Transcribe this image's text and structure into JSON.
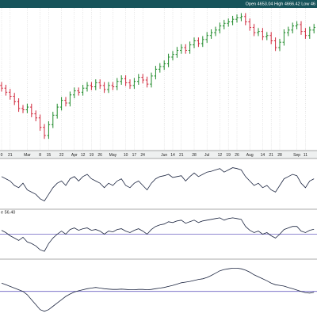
{
  "chart_data": [
    {
      "type": "ohlc",
      "header": "Open 4653.04  High 4666.42  Low 46",
      "categories": [
        "0",
        null,
        "21",
        null,
        null,
        null,
        "Mar",
        null,
        null,
        "8",
        null,
        "15",
        null,
        null,
        "22",
        null,
        null,
        "Apr",
        null,
        "12",
        null,
        "19",
        null,
        "26",
        null,
        null,
        "May",
        null,
        null,
        "10",
        null,
        "17",
        null,
        "24",
        null,
        null,
        null,
        null,
        "Jun",
        null,
        "14",
        null,
        "21",
        null,
        null,
        "28",
        null,
        null,
        "Jul",
        null,
        null,
        "12",
        null,
        "19",
        null,
        "26",
        null,
        null,
        "Aug",
        null,
        null,
        "14",
        null,
        "21",
        null,
        "28",
        null,
        null,
        null,
        "Sep",
        null,
        "11",
        null,
        null
      ],
      "open": [
        4170,
        4150,
        4120,
        4090,
        4050,
        4000,
        3990,
        4010,
        3960,
        3930,
        3860,
        3800,
        3880,
        3950,
        4010,
        4060,
        4040,
        4100,
        4130,
        4120,
        4150,
        4170,
        4160,
        4190,
        4170,
        4140,
        4170,
        4160,
        4200,
        4220,
        4190,
        4170,
        4200,
        4230,
        4210,
        4180,
        4240,
        4290,
        4310,
        4330,
        4380,
        4400,
        4430,
        4450,
        4430,
        4470,
        4500,
        4480,
        4510,
        4540,
        4560,
        4580,
        4610,
        4630,
        4640,
        4660,
        4670,
        4680,
        4640,
        4600,
        4560,
        4570,
        4530,
        4540,
        4500,
        4450,
        4490,
        4560,
        4580,
        4610,
        4620,
        4570,
        4540,
        4580
      ],
      "high": [
        4195,
        4175,
        4145,
        4115,
        4075,
        4025,
        4035,
        4035,
        3985,
        3955,
        3885,
        3905,
        3975,
        4035,
        4085,
        4085,
        4125,
        4155,
        4155,
        4175,
        4195,
        4195,
        4215,
        4215,
        4195,
        4195,
        4195,
        4225,
        4245,
        4245,
        4215,
        4225,
        4255,
        4255,
        4235,
        4265,
        4315,
        4335,
        4355,
        4405,
        4425,
        4455,
        4475,
        4475,
        4495,
        4525,
        4525,
        4535,
        4565,
        4585,
        4605,
        4635,
        4655,
        4665,
        4685,
        4695,
        4705,
        4705,
        4665,
        4625,
        4595,
        4595,
        4565,
        4565,
        4525,
        4515,
        4585,
        4605,
        4635,
        4645,
        4645,
        4595,
        4605,
        4625
      ],
      "low": [
        4125,
        4095,
        4065,
        4025,
        3975,
        3965,
        3965,
        3935,
        3905,
        3835,
        3775,
        3775,
        3855,
        3925,
        3985,
        4015,
        4015,
        4075,
        4095,
        4095,
        4125,
        4135,
        4135,
        4145,
        4115,
        4115,
        4135,
        4135,
        4175,
        4165,
        4145,
        4145,
        4175,
        4185,
        4155,
        4155,
        4215,
        4265,
        4285,
        4305,
        4355,
        4375,
        4405,
        4405,
        4405,
        4445,
        4455,
        4455,
        4485,
        4515,
        4535,
        4555,
        4585,
        4605,
        4615,
        4635,
        4645,
        4615,
        4575,
        4535,
        4535,
        4505,
        4505,
        4475,
        4425,
        4425,
        4465,
        4535,
        4555,
        4585,
        4545,
        4515,
        4515,
        4555
      ],
      "close": [
        4150,
        4120,
        4090,
        4050,
        4000,
        3990,
        4010,
        3960,
        3930,
        3860,
        3800,
        3880,
        3950,
        4010,
        4060,
        4040,
        4100,
        4130,
        4120,
        4150,
        4170,
        4160,
        4190,
        4170,
        4140,
        4170,
        4160,
        4200,
        4220,
        4190,
        4170,
        4200,
        4230,
        4210,
        4180,
        4240,
        4290,
        4310,
        4330,
        4380,
        4400,
        4430,
        4450,
        4430,
        4470,
        4500,
        4480,
        4510,
        4540,
        4560,
        4580,
        4610,
        4630,
        4640,
        4660,
        4670,
        4680,
        4640,
        4600,
        4560,
        4570,
        4530,
        4540,
        4500,
        4450,
        4490,
        4560,
        4580,
        4610,
        4620,
        4570,
        4540,
        4580,
        4600
      ],
      "up_color": "#1f8a2a",
      "down_color": "#d0283c",
      "ylim": [
        3700,
        4720
      ],
      "grid": true
    },
    {
      "type": "line",
      "values": [
        70,
        65,
        60,
        50,
        45,
        55,
        40,
        35,
        30,
        20,
        15,
        30,
        45,
        55,
        60,
        50,
        65,
        70,
        60,
        70,
        75,
        65,
        60,
        55,
        45,
        55,
        50,
        60,
        65,
        50,
        45,
        55,
        60,
        50,
        40,
        55,
        65,
        70,
        72,
        75,
        68,
        70,
        72,
        60,
        70,
        78,
        70,
        75,
        80,
        82,
        85,
        88,
        80,
        85,
        90,
        88,
        85,
        70,
        60,
        50,
        55,
        45,
        50,
        40,
        35,
        50,
        65,
        70,
        75,
        72,
        55,
        45,
        60,
        65
      ],
      "color": "#1c2540",
      "ylim": [
        0,
        100
      ]
    },
    {
      "type": "line",
      "label": "e 56.40",
      "values": [
        55,
        52,
        48,
        45,
        42,
        46,
        40,
        38,
        35,
        30,
        28,
        38,
        45,
        50,
        54,
        50,
        56,
        58,
        55,
        57,
        58,
        55,
        56,
        54,
        50,
        54,
        53,
        56,
        57,
        54,
        52,
        55,
        57,
        54,
        50,
        56,
        60,
        62,
        63,
        66,
        65,
        67,
        68,
        64,
        66,
        68,
        65,
        67,
        68,
        69,
        70,
        71,
        68,
        70,
        71,
        70,
        69,
        60,
        55,
        52,
        54,
        50,
        52,
        48,
        45,
        50,
        56,
        58,
        60,
        60,
        54,
        52,
        55,
        56.4
      ],
      "color": "#1c2540",
      "ylim": [
        20,
        80
      ],
      "reference": 50,
      "reference_color": "#6a5fc0"
    },
    {
      "type": "line",
      "values": [
        25,
        20,
        15,
        10,
        5,
        0,
        -10,
        -25,
        -40,
        -55,
        -60,
        -55,
        -45,
        -35,
        -25,
        -15,
        -8,
        -2,
        2,
        5,
        8,
        10,
        12,
        10,
        8,
        7,
        6,
        6,
        7,
        6,
        5,
        5,
        6,
        6,
        5,
        6,
        8,
        10,
        12,
        15,
        18,
        22,
        26,
        28,
        30,
        33,
        36,
        38,
        42,
        48,
        55,
        62,
        66,
        68,
        70,
        70,
        68,
        64,
        58,
        50,
        44,
        38,
        32,
        25,
        20,
        18,
        16,
        12,
        8,
        4,
        0,
        -4,
        -5,
        -3
      ],
      "color": "#1c2540",
      "ylim": [
        -70,
        90
      ],
      "reference": 0,
      "reference_color": "#6a5fc0"
    }
  ]
}
